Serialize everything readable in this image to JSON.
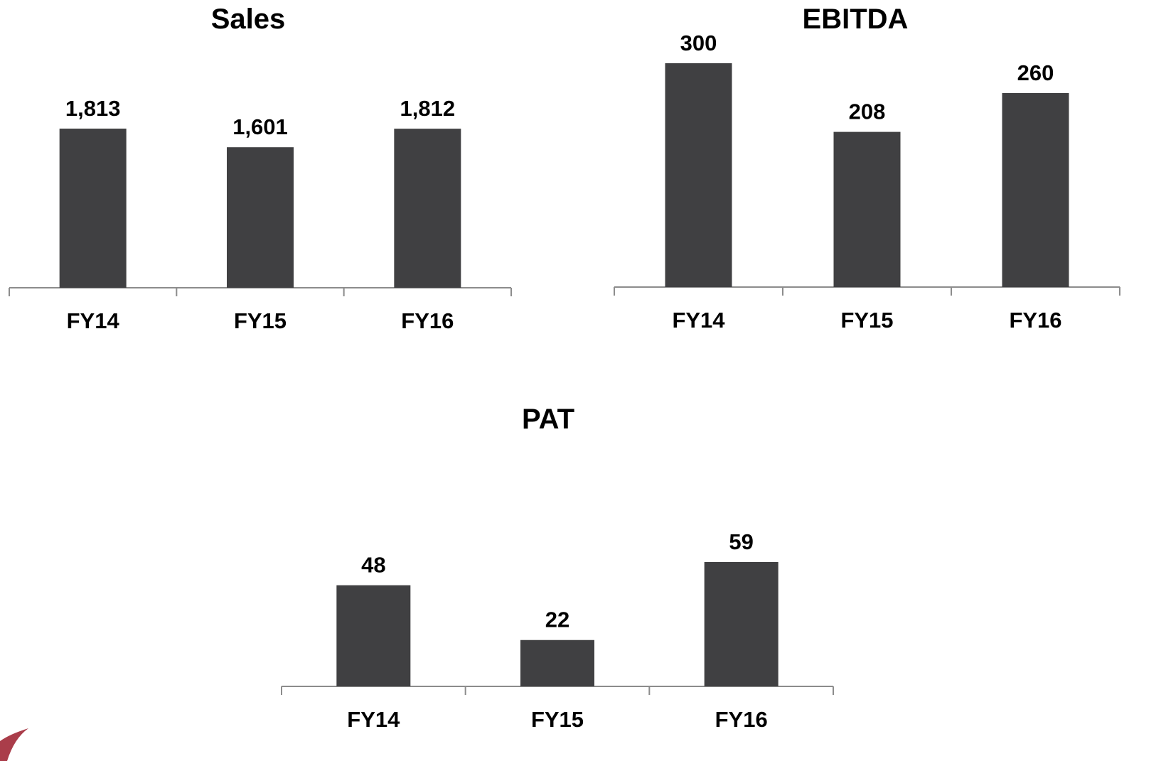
{
  "colors": {
    "bar": "#404042",
    "axis": "#8c8c8c",
    "text": "#000000",
    "background": "#ffffff",
    "corner_accent": "#9b1b2a"
  },
  "chart_data": [
    {
      "type": "bar",
      "title": "Sales",
      "categories": [
        "FY14",
        "FY15",
        "FY16"
      ],
      "values": [
        1813,
        1601,
        1812
      ],
      "value_labels": [
        "1,813",
        "1,601",
        "1,812"
      ],
      "xlabel": "",
      "ylabel": "",
      "ylim": [
        0,
        2400
      ],
      "grid": false,
      "legend": "none"
    },
    {
      "type": "bar",
      "title": "EBITDA",
      "categories": [
        "FY14",
        "FY15",
        "FY16"
      ],
      "values": [
        300,
        208,
        260
      ],
      "value_labels": [
        "300",
        "208",
        "260"
      ],
      "xlabel": "",
      "ylabel": "",
      "ylim": [
        0,
        300
      ],
      "grid": false,
      "legend": "none"
    },
    {
      "type": "bar",
      "title": "PAT",
      "categories": [
        "FY14",
        "FY15",
        "FY16"
      ],
      "values": [
        48,
        22,
        59
      ],
      "value_labels": [
        "48",
        "22",
        "59"
      ],
      "xlabel": "",
      "ylabel": "",
      "ylim": [
        0,
        70
      ],
      "grid": false,
      "legend": "none"
    }
  ]
}
